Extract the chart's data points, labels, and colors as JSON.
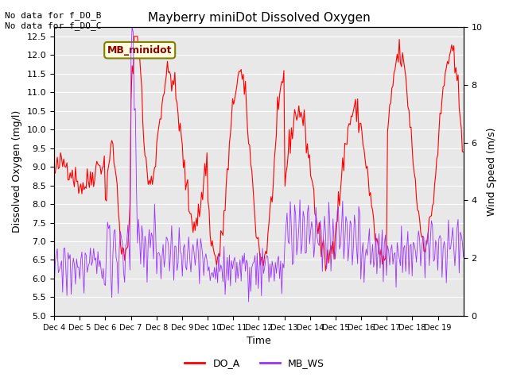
{
  "title": "Mayberry miniDot Dissolved Oxygen",
  "xlabel": "Time",
  "ylabel_left": "Dissolved Oxygen (mg/l)",
  "ylabel_right": "Wind Speed (m/s)",
  "ylim_left": [
    5.0,
    12.75
  ],
  "ylim_right": [
    0.0,
    10.0
  ],
  "yticks_left": [
    5.0,
    5.5,
    6.0,
    6.5,
    7.0,
    7.5,
    8.0,
    8.5,
    9.0,
    9.5,
    10.0,
    10.5,
    11.0,
    11.5,
    12.0,
    12.5
  ],
  "yticks_right": [
    0.0,
    2.0,
    4.0,
    6.0,
    8.0,
    10.0
  ],
  "xtick_labels": [
    "Dec 4",
    "Dec 5",
    "Dec 6",
    "Dec 7",
    "Dec 8",
    "Dec 9",
    "Dec 10",
    "Dec 11",
    "Dec 12",
    "Dec 13",
    "Dec 14",
    "Dec 15",
    "Dec 16",
    "Dec 17",
    "Dec 18",
    "Dec 19"
  ],
  "note_text": "No data for f_DO_B\nNo data for f_DO_C",
  "legend_label_box": "MB_minidot",
  "do_color": "#FF0000",
  "ws_color": "#9B30FF",
  "background_color": "#E8E8E8",
  "grid_color": "#FFFFFF",
  "legend_do": "DO_A",
  "legend_ws": "MB_WS"
}
